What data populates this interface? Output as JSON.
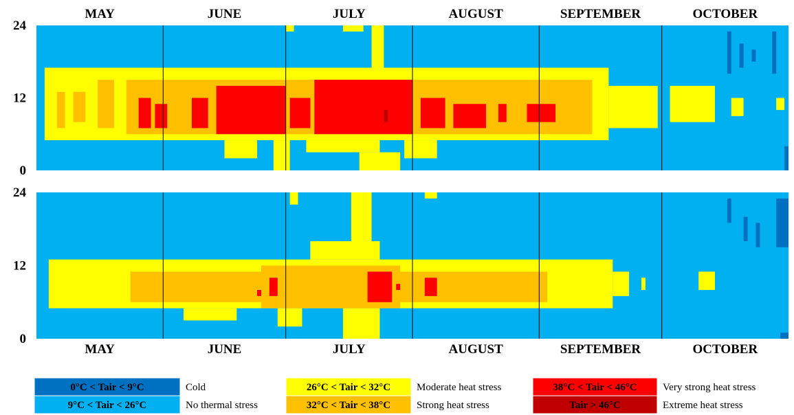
{
  "chart_data": {
    "type": "heatmap",
    "title": "",
    "x_months": [
      "MAY",
      "JUNE",
      "JULY",
      "AUGUST",
      "SEPTEMBER",
      "OCTOBER"
    ],
    "y_axis": {
      "ticks": [
        "0",
        "12",
        "24"
      ],
      "range": [
        0,
        24
      ],
      "unit": "hour"
    },
    "month_boundaries_day_of_year": [
      121,
      152,
      182,
      213,
      244,
      274,
      305
    ],
    "colors": {
      "cold": "#0070c0",
      "no_stress": "#00b0f0",
      "moderate": "#ffff00",
      "strong": "#ffc000",
      "very_strong": "#ff0000",
      "extreme": "#c00000"
    },
    "legend": [
      {
        "range": "0°C < Tair < 9°C",
        "label": "Cold",
        "color": "#0070c0",
        "text_color": "#000000"
      },
      {
        "range": "9°C < Tair < 26°C",
        "label": "No thermal stress",
        "color": "#00b0f0",
        "text_color": "#000000"
      },
      {
        "range": "26°C < Tair < 32°C",
        "label": "Moderate heat stress",
        "color": "#ffff00",
        "text_color": "#000000"
      },
      {
        "range": "32°C < Tair < 38°C",
        "label": "Strong heat stress",
        "color": "#ffc000",
        "text_color": "#000000"
      },
      {
        "range": "38°C < Tair < 46°C",
        "label": "Very strong heat stress",
        "color": "#ff0000",
        "text_color": "#000000"
      },
      {
        "range": "Tair > 46°C",
        "label": "Extreme heat stress",
        "color": "#c00000",
        "text_color": "#000000"
      }
    ],
    "panels": [
      {
        "name": "top",
        "background": "no_stress",
        "regions": [
          {
            "cat": "moderate",
            "day_start": 123,
            "day_end": 261,
            "hour_start": 5,
            "hour_end": 17
          },
          {
            "cat": "moderate",
            "day_start": 261,
            "day_end": 273,
            "hour_start": 7,
            "hour_end": 14
          },
          {
            "cat": "moderate",
            "day_start": 276,
            "day_end": 287,
            "hour_start": 8,
            "hour_end": 14
          },
          {
            "cat": "moderate",
            "day_start": 291,
            "day_end": 294,
            "hour_start": 9,
            "hour_end": 12
          },
          {
            "cat": "moderate",
            "day_start": 302,
            "day_end": 304,
            "hour_start": 10,
            "hour_end": 12
          },
          {
            "cat": "moderate",
            "day_start": 167,
            "day_end": 175,
            "hour_start": 2,
            "hour_end": 5
          },
          {
            "cat": "moderate",
            "day_start": 179,
            "day_end": 183,
            "hour_start": 0,
            "hour_end": 5
          },
          {
            "cat": "moderate",
            "day_start": 187,
            "day_end": 205,
            "hour_start": 3,
            "hour_end": 5
          },
          {
            "cat": "moderate",
            "day_start": 200,
            "day_end": 210,
            "hour_start": 0,
            "hour_end": 3
          },
          {
            "cat": "moderate",
            "day_start": 203,
            "day_end": 206,
            "hour_start": 17,
            "hour_end": 24
          },
          {
            "cat": "moderate",
            "day_start": 211,
            "day_end": 219,
            "hour_start": 2,
            "hour_end": 5
          },
          {
            "cat": "moderate",
            "day_start": 182,
            "day_end": 184,
            "hour_start": 23,
            "hour_end": 24
          },
          {
            "cat": "moderate",
            "day_start": 196,
            "day_end": 201,
            "hour_start": 23,
            "hour_end": 24
          },
          {
            "cat": "strong",
            "day_start": 126,
            "day_end": 128,
            "hour_start": 7,
            "hour_end": 13
          },
          {
            "cat": "strong",
            "day_start": 130,
            "day_end": 133,
            "hour_start": 8,
            "hour_end": 13
          },
          {
            "cat": "strong",
            "day_start": 136,
            "day_end": 140,
            "hour_start": 7,
            "hour_end": 15
          },
          {
            "cat": "strong",
            "day_start": 143,
            "day_end": 257,
            "hour_start": 6,
            "hour_end": 15
          },
          {
            "cat": "very_strong",
            "day_start": 146,
            "day_end": 149,
            "hour_start": 7,
            "hour_end": 12
          },
          {
            "cat": "very_strong",
            "day_start": 150,
            "day_end": 153,
            "hour_start": 7,
            "hour_end": 11
          },
          {
            "cat": "very_strong",
            "day_start": 159,
            "day_end": 163,
            "hour_start": 7,
            "hour_end": 12
          },
          {
            "cat": "very_strong",
            "day_start": 165,
            "day_end": 182,
            "hour_start": 6,
            "hour_end": 14
          },
          {
            "cat": "very_strong",
            "day_start": 183,
            "day_end": 188,
            "hour_start": 7,
            "hour_end": 12
          },
          {
            "cat": "very_strong",
            "day_start": 189,
            "day_end": 213,
            "hour_start": 6,
            "hour_end": 15
          },
          {
            "cat": "very_strong",
            "day_start": 215,
            "day_end": 221,
            "hour_start": 7,
            "hour_end": 12
          },
          {
            "cat": "very_strong",
            "day_start": 223,
            "day_end": 231,
            "hour_start": 7,
            "hour_end": 11
          },
          {
            "cat": "very_strong",
            "day_start": 234,
            "day_end": 236,
            "hour_start": 8,
            "hour_end": 11
          },
          {
            "cat": "very_strong",
            "day_start": 241,
            "day_end": 248,
            "hour_start": 8,
            "hour_end": 11
          },
          {
            "cat": "extreme",
            "day_start": 206,
            "day_end": 207,
            "hour_start": 8,
            "hour_end": 10
          },
          {
            "cat": "cold",
            "day_start": 290,
            "day_end": 291,
            "hour_start": 16,
            "hour_end": 23
          },
          {
            "cat": "cold",
            "day_start": 293,
            "day_end": 294,
            "hour_start": 17,
            "hour_end": 21
          },
          {
            "cat": "cold",
            "day_start": 296,
            "day_end": 297,
            "hour_start": 18,
            "hour_end": 20
          },
          {
            "cat": "cold",
            "day_start": 301,
            "day_end": 302,
            "hour_start": 16,
            "hour_end": 23
          },
          {
            "cat": "cold",
            "day_start": 304,
            "day_end": 305,
            "hour_start": 0,
            "hour_end": 4
          }
        ]
      },
      {
        "name": "bottom",
        "background": "no_stress",
        "regions": [
          {
            "cat": "moderate",
            "day_start": 124,
            "day_end": 262,
            "hour_start": 5,
            "hour_end": 13
          },
          {
            "cat": "moderate",
            "day_start": 262,
            "day_end": 266,
            "hour_start": 7,
            "hour_end": 11
          },
          {
            "cat": "moderate",
            "day_start": 269,
            "day_end": 270,
            "hour_start": 8,
            "hour_end": 10
          },
          {
            "cat": "moderate",
            "day_start": 283,
            "day_end": 287,
            "hour_start": 8,
            "hour_end": 11
          },
          {
            "cat": "moderate",
            "day_start": 157,
            "day_end": 170,
            "hour_start": 3,
            "hour_end": 5
          },
          {
            "cat": "moderate",
            "day_start": 180,
            "day_end": 186,
            "hour_start": 2,
            "hour_end": 5
          },
          {
            "cat": "moderate",
            "day_start": 196,
            "day_end": 205,
            "hour_start": 0,
            "hour_end": 5
          },
          {
            "cat": "moderate",
            "day_start": 188,
            "day_end": 205,
            "hour_start": 13,
            "hour_end": 16
          },
          {
            "cat": "moderate",
            "day_start": 198,
            "day_end": 203,
            "hour_start": 16,
            "hour_end": 24
          },
          {
            "cat": "moderate",
            "day_start": 183,
            "day_end": 185,
            "hour_start": 22,
            "hour_end": 24
          },
          {
            "cat": "moderate",
            "day_start": 216,
            "day_end": 219,
            "hour_start": 23,
            "hour_end": 24
          },
          {
            "cat": "strong",
            "day_start": 144,
            "day_end": 246,
            "hour_start": 6,
            "hour_end": 11
          },
          {
            "cat": "strong",
            "day_start": 176,
            "day_end": 210,
            "hour_start": 5,
            "hour_end": 12
          },
          {
            "cat": "very_strong",
            "day_start": 175,
            "day_end": 176,
            "hour_start": 7,
            "hour_end": 8
          },
          {
            "cat": "very_strong",
            "day_start": 178,
            "day_end": 180,
            "hour_start": 7,
            "hour_end": 10
          },
          {
            "cat": "very_strong",
            "day_start": 202,
            "day_end": 208,
            "hour_start": 6,
            "hour_end": 11
          },
          {
            "cat": "very_strong",
            "day_start": 209,
            "day_end": 210,
            "hour_start": 8,
            "hour_end": 9
          },
          {
            "cat": "very_strong",
            "day_start": 216,
            "day_end": 219,
            "hour_start": 7,
            "hour_end": 10
          },
          {
            "cat": "cold",
            "day_start": 290,
            "day_end": 291,
            "hour_start": 19,
            "hour_end": 23
          },
          {
            "cat": "cold",
            "day_start": 294,
            "day_end": 295,
            "hour_start": 16,
            "hour_end": 20
          },
          {
            "cat": "cold",
            "day_start": 297,
            "day_end": 298,
            "hour_start": 15,
            "hour_end": 19
          },
          {
            "cat": "cold",
            "day_start": 302,
            "day_end": 305,
            "hour_start": 15,
            "hour_end": 23
          },
          {
            "cat": "cold",
            "day_start": 303,
            "day_end": 305,
            "hour_start": 0,
            "hour_end": 1
          }
        ]
      }
    ]
  }
}
